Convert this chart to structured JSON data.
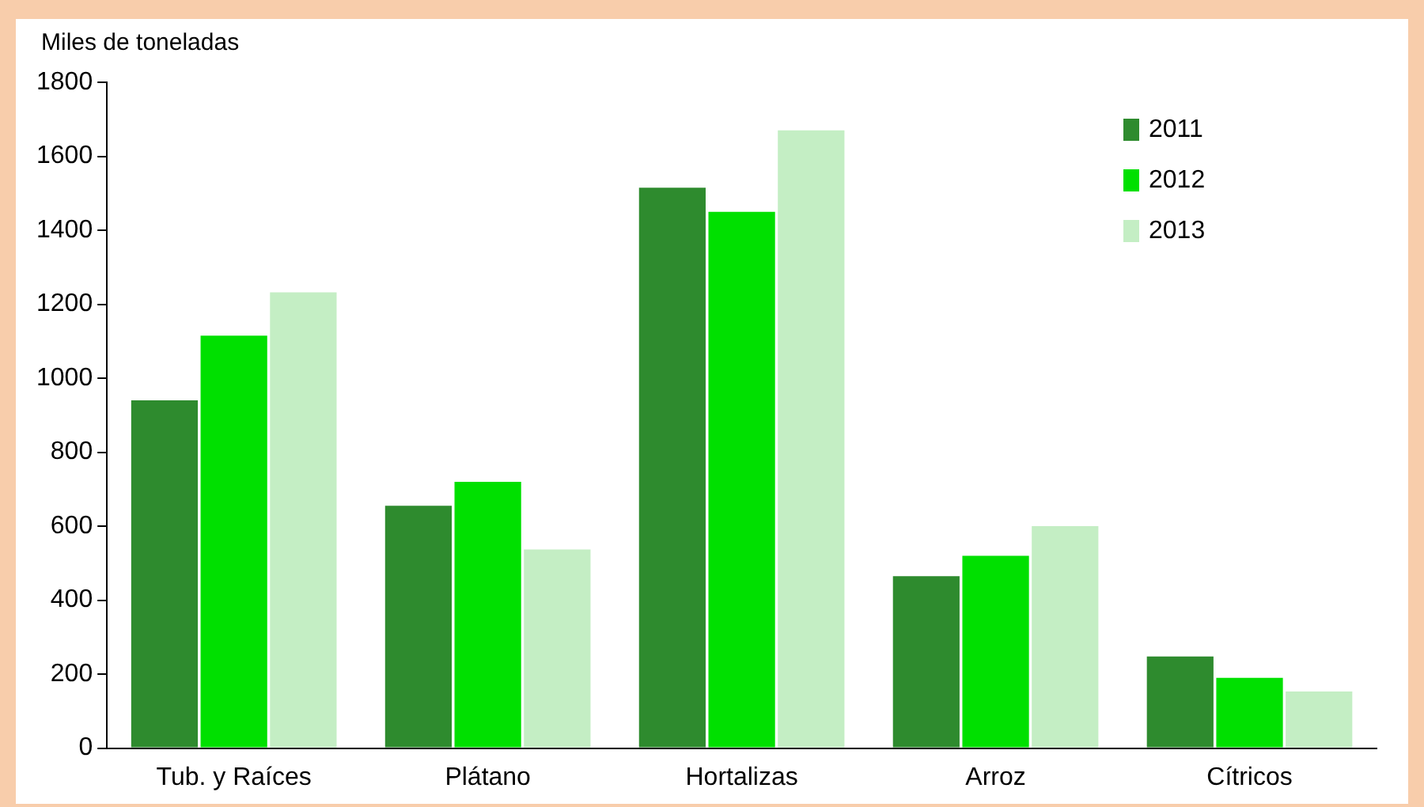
{
  "chart_data": {
    "type": "bar",
    "ylabel": "Miles de toneladas",
    "categories": [
      "Tub. y Raíces",
      "Plátano",
      "Hortalizas",
      "Arroz",
      "Cítricos"
    ],
    "series": [
      {
        "name": "2011",
        "color": "#2e8b2e",
        "values": [
          940,
          655,
          1515,
          465,
          248
        ]
      },
      {
        "name": "2012",
        "color": "#00e000",
        "values": [
          1115,
          720,
          1450,
          520,
          190
        ]
      },
      {
        "name": "2013",
        "color": "#c4eec4",
        "values": [
          1232,
          537,
          1670,
          600,
          153
        ]
      }
    ],
    "ylim": [
      0,
      1800
    ],
    "yticks": [
      0,
      200,
      400,
      600,
      800,
      1000,
      1200,
      1400,
      1600,
      1800
    ],
    "grid": false,
    "legend": "top right"
  }
}
